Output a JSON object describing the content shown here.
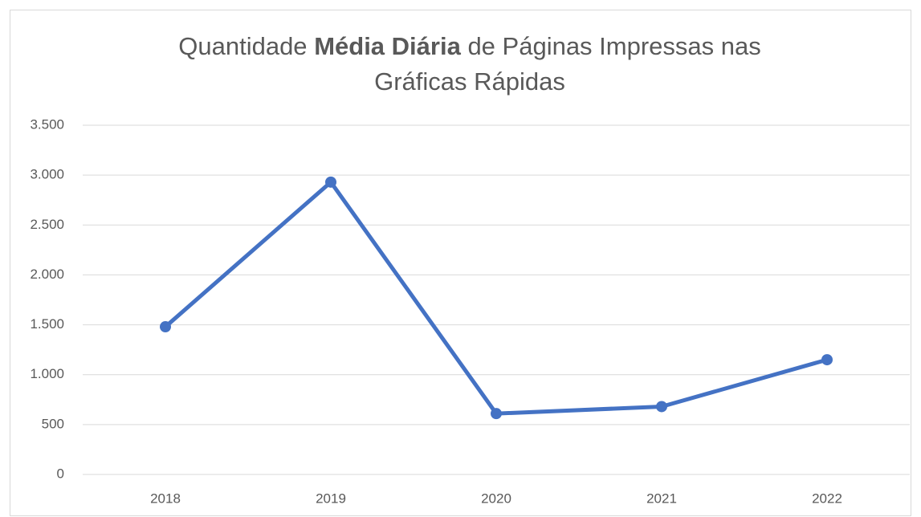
{
  "chart_data": {
    "type": "line",
    "title": [
      "Quantidade",
      "Média Diária",
      "de Páginas Impressas nas",
      "Gráficas Rápidas"
    ],
    "categories": [
      "2018",
      "2019",
      "2020",
      "2021",
      "2022"
    ],
    "series": [
      {
        "color": "#4472c4",
        "values": [
          1480,
          2930,
          610,
          680,
          1150
        ]
      }
    ],
    "ylim": [
      0,
      3500
    ],
    "yticks": [
      0,
      500,
      {
        "value": 1000,
        "label": "1.000"
      },
      {
        "value": 1500,
        "label": "1.500"
      },
      {
        "value": 2000,
        "label": "2.000"
      },
      {
        "value": 2500,
        "label": "2.500"
      },
      {
        "value": 3000,
        "label": "3.000"
      },
      {
        "value": 3500,
        "label": "3.500"
      }
    ],
    "grid": true
  }
}
